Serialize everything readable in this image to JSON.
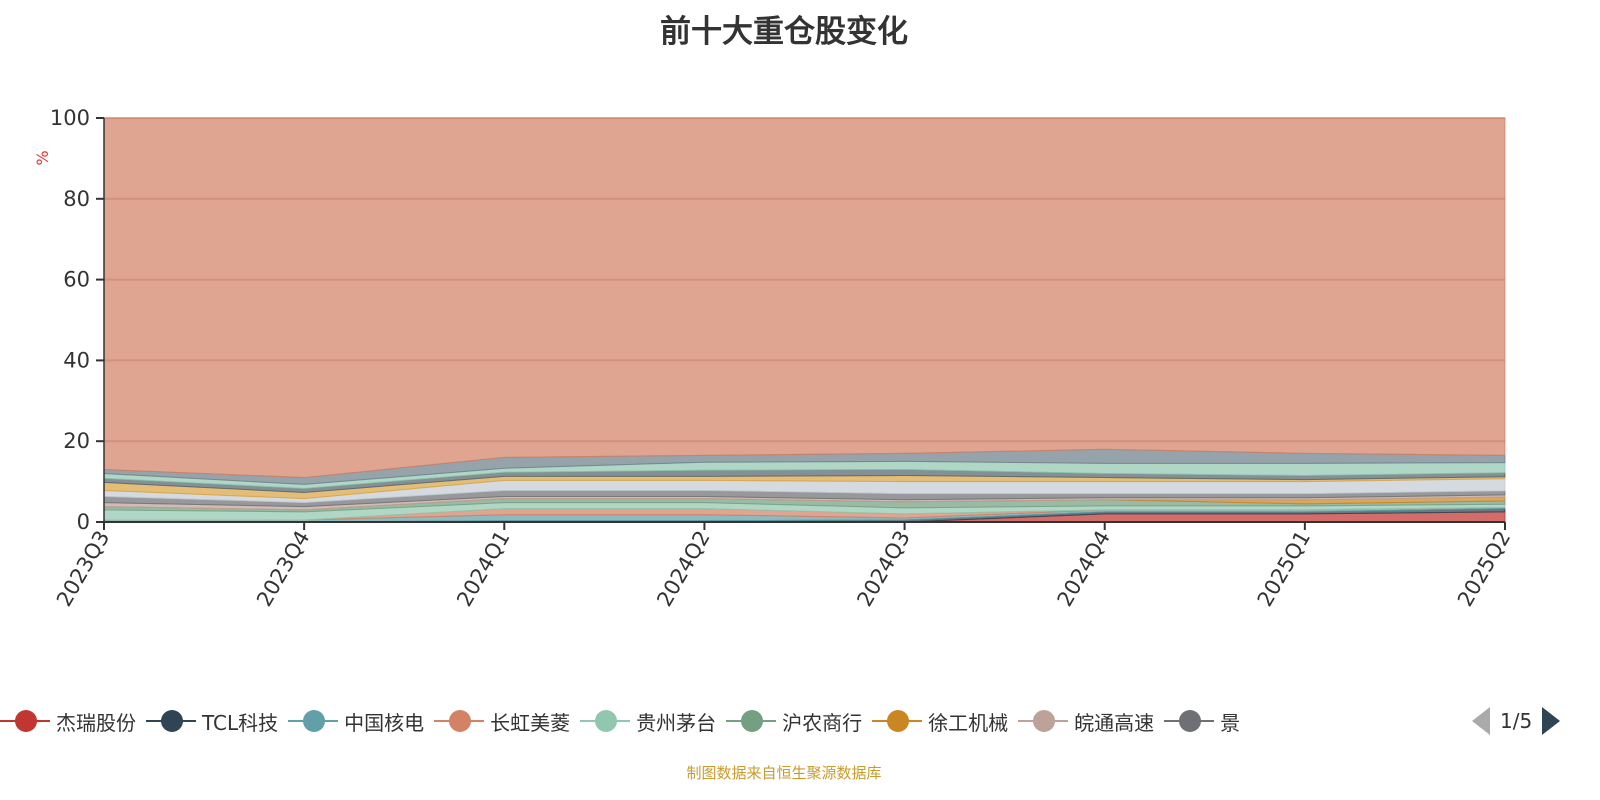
{
  "chart_data": {
    "type": "area",
    "stacked": true,
    "title": "前十大重仓股变化",
    "ylabel": "%",
    "ylim": [
      0,
      100
    ],
    "yticks": [
      "0",
      "20",
      "40",
      "60",
      "80",
      "100"
    ],
    "categories": [
      "2023Q3",
      "2023Q4",
      "2024Q1",
      "2024Q2",
      "2024Q3",
      "2024Q4",
      "2025Q1",
      "2025Q2"
    ],
    "grid": true,
    "legend_position": "bottom",
    "series": [
      {
        "name": "杰瑞股份",
        "color": "#c23531",
        "values": [
          0,
          0,
          0,
          0,
          0,
          2,
          2,
          2.5
        ]
      },
      {
        "name": "TCL科技",
        "color": "#2f4554",
        "values": [
          0,
          0,
          0.3,
          0.3,
          0.5,
          0.5,
          0.5,
          0.8
        ]
      },
      {
        "name": "中国核电",
        "color": "#61a0a8",
        "values": [
          0.5,
          0.5,
          1.5,
          1.5,
          0.5,
          0.5,
          0.5,
          0.3
        ]
      },
      {
        "name": "长虹美菱",
        "color": "#d48265",
        "values": [
          0,
          0,
          1.5,
          1.5,
          1,
          0,
          0,
          0
        ]
      },
      {
        "name": "贵州茅台",
        "color": "#91c7ae",
        "values": [
          2.5,
          2,
          1.5,
          1.5,
          1.5,
          1,
          1,
          0.8
        ]
      },
      {
        "name": "沪农商行",
        "color": "#749f83",
        "values": [
          0.8,
          0.5,
          1,
          1,
          1.5,
          1.5,
          0.5,
          0.8
        ]
      },
      {
        "name": "徐工机械",
        "color": "#ca8622",
        "values": [
          0,
          0,
          0,
          0,
          0,
          0,
          1,
          1
        ]
      },
      {
        "name": "皖通高速",
        "color": "#bda29a",
        "values": [
          1,
          0.8,
          0.5,
          0.5,
          0.5,
          0.5,
          0.5,
          0.5
        ]
      },
      {
        "name": "景",
        "color": "#6e7074",
        "values": [
          1.5,
          1,
          1.5,
          1.5,
          1.5,
          1,
          1,
          1
        ]
      },
      {
        "color": "#c4ccd3",
        "values": [
          1.5,
          1,
          2.5,
          2.5,
          3,
          3,
          3,
          3
        ]
      },
      {
        "color": "#d9a441",
        "values": [
          2,
          1.5,
          1,
          1,
          1.5,
          1,
          0.5,
          0.5
        ]
      },
      {
        "color": "#546570",
        "values": [
          1,
          1,
          1,
          1.5,
          1.5,
          1,
          1,
          1
        ]
      },
      {
        "color": "#91c7ae",
        "values": [
          1.2,
          1,
          1,
          2,
          2,
          2.5,
          3,
          2.5
        ]
      },
      {
        "color": "#6e7f8a",
        "values": [
          1,
          1.7,
          2.7,
          1.7,
          2,
          3.5,
          2.5,
          1.8
        ]
      },
      {
        "color": "#d48265",
        "values": [
          87,
          89,
          84,
          83.5,
          83,
          82,
          83,
          83.5
        ]
      }
    ]
  },
  "legend": {
    "page": "1/5"
  },
  "source": "制图数据来自恒生聚源数据库"
}
